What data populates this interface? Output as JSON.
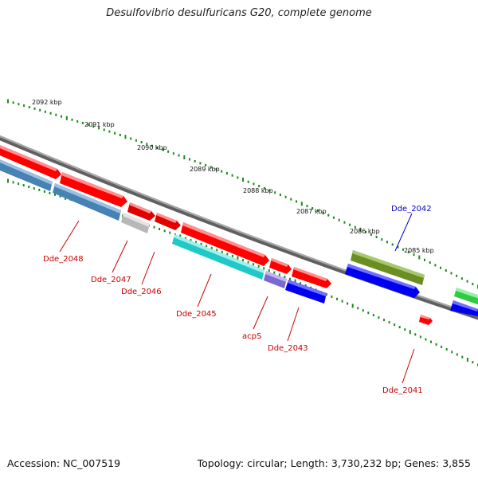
{
  "title": "Desulfovibrio desulfuricans G20, complete genome",
  "footer": {
    "accession": "Accession: NC_007519",
    "summary": "Topology: circular; Length: 3,730,232 bp; Genes: 3,855"
  },
  "scale_labels": [
    "2092 kbp",
    "2091 kbp",
    "2090 kbp",
    "2089 kbp",
    "2088 kbp",
    "2087 kbp",
    "2086 kbp",
    "2085 kbp"
  ],
  "gene_labels": [
    "Dde_2048",
    "Dde_2047",
    "Dde_2046",
    "Dde_2045",
    "acpS",
    "Dde_2043",
    "Dde_2042",
    "Dde_2041"
  ],
  "colors": {
    "red": "#ff0000",
    "steelblue": "#4682b4",
    "gray": "#b8b8b8",
    "cyan": "#20c8c8",
    "purple": "#7b68d0",
    "blue": "#0000ee",
    "olive": "#6b8e23",
    "green": "#2ecc40",
    "tick_green": "#1a8a1a",
    "backbone": "#808080",
    "label_red": "#cc0000",
    "label_blue": "#0000cc"
  }
}
